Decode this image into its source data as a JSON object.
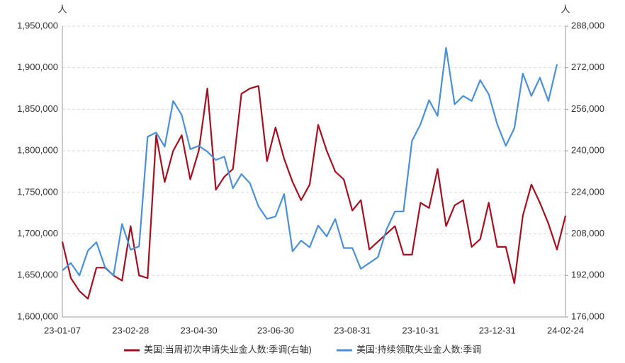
{
  "chart_data": {
    "type": "line",
    "y_unit": "人",
    "y2_unit": "人",
    "categories": [
      "23-01-07",
      null,
      null,
      null,
      null,
      null,
      null,
      null,
      "23-02-28",
      null,
      null,
      null,
      null,
      null,
      null,
      null,
      "23-04-30",
      null,
      null,
      null,
      null,
      null,
      null,
      null,
      null,
      "23-06-30",
      null,
      null,
      null,
      null,
      null,
      null,
      null,
      null,
      "23-08-31",
      null,
      null,
      null,
      null,
      null,
      null,
      null,
      "23-10-31",
      null,
      null,
      null,
      null,
      null,
      null,
      null,
      null,
      "23-12-31",
      null,
      null,
      null,
      null,
      null,
      null,
      null,
      "24-02-24"
    ],
    "ylim": [
      1600000,
      1950000
    ],
    "yticks": [
      {
        "value": 1600000,
        "label": "1,600,000"
      },
      {
        "value": 1650000,
        "label": "1,650,000"
      },
      {
        "value": 1700000,
        "label": "1,700,000"
      },
      {
        "value": 1750000,
        "label": "1,750,000"
      },
      {
        "value": 1800000,
        "label": "1,800,000"
      },
      {
        "value": 1850000,
        "label": "1,850,000"
      },
      {
        "value": 1900000,
        "label": "1,900,000"
      },
      {
        "value": 1950000,
        "label": "1,950,000"
      }
    ],
    "y2lim": [
      176000,
      288000
    ],
    "y2ticks": [
      {
        "value": 176000,
        "label": "176,000"
      },
      {
        "value": 192000,
        "label": "192,000"
      },
      {
        "value": 208000,
        "label": "208,000"
      },
      {
        "value": 224000,
        "label": "224,000"
      },
      {
        "value": 240000,
        "label": "240,000"
      },
      {
        "value": 256000,
        "label": "256,000"
      },
      {
        "value": 272000,
        "label": "272,000"
      },
      {
        "value": 288000,
        "label": "288,000"
      }
    ],
    "grid": true,
    "legend": "bottom",
    "series": [
      {
        "name": "美国:当周初次申请失业金人数:季调(右轴)",
        "color": "#a50f1f",
        "axis": "y2",
        "values": [
          205000,
          191000,
          186000,
          183000,
          195000,
          195000,
          192000,
          190000,
          211000,
          192000,
          191000,
          246000,
          228000,
          240000,
          246000,
          229000,
          240000,
          264000,
          225000,
          230000,
          233000,
          262000,
          264000,
          265000,
          236000,
          249000,
          237000,
          228000,
          221000,
          227000,
          250000,
          240000,
          232000,
          229000,
          217000,
          221000,
          202000,
          205000,
          208000,
          211000,
          200000,
          200000,
          220000,
          218000,
          233000,
          211000,
          219000,
          221000,
          203000,
          206000,
          220000,
          203000,
          203000,
          189000,
          215000,
          227000,
          220000,
          212000,
          202000,
          215000
        ]
      },
      {
        "name": "美国:持续领取失业金人数:季调",
        "color": "#4a90d9",
        "values": [
          1656000,
          1665000,
          1650000,
          1680000,
          1690000,
          1660000,
          1650000,
          1712000,
          1681000,
          1685000,
          1817000,
          1822000,
          1805000,
          1860000,
          1843000,
          1802000,
          1806000,
          1799000,
          1789000,
          1793000,
          1755000,
          1772000,
          1761000,
          1733000,
          1718000,
          1721000,
          1748000,
          1679000,
          1692000,
          1684000,
          1710000,
          1697000,
          1718000,
          1683000,
          1683000,
          1658000,
          1665000,
          1672000,
          1705000,
          1727000,
          1727000,
          1812000,
          1832000,
          1861000,
          1842000,
          1924000,
          1856000,
          1866000,
          1860000,
          1885000,
          1868000,
          1832000,
          1806000,
          1827000,
          1893000,
          1866000,
          1888000,
          1860000,
          1904000,
          null
        ]
      }
    ]
  }
}
